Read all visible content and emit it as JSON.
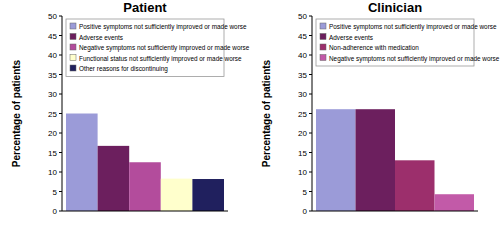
{
  "chart_data": [
    {
      "type": "bar",
      "title": "Patient",
      "y_label": "Percentage of patients",
      "categories": [
        "Positive symptoms not sufficiently improved or made worse",
        "Adverse events",
        "Negative symptoms not sufficiently improved or made worse",
        "Functional status not sufficiently improved or made worse",
        "Other reasons for discontinuing"
      ],
      "values": [
        25,
        16.7,
        12.5,
        8.3,
        8.2
      ],
      "colors": [
        "#9b9bd8",
        "#6c1f5e",
        "#b34c9c",
        "#ffffcc",
        "#20205e"
      ],
      "ylim": [
        0,
        50
      ],
      "yticks": [
        0,
        5,
        10,
        15,
        20,
        25,
        30,
        35,
        40,
        45,
        50
      ],
      "legend": "upper left",
      "tick_labels": "y"
    },
    {
      "type": "bar",
      "title": "Clinician",
      "y_label": "Percentage of patients",
      "categories": [
        "Positive symptoms not sufficiently improved or made worse",
        "Adverse events",
        "Non-adherence with medication",
        "Negative symptoms not sufficiently improved or made worse"
      ],
      "values": [
        26.1,
        26.1,
        13,
        4.3
      ],
      "colors": [
        "#9b9bd8",
        "#6c1f5e",
        "#9c2f6c",
        "#c25aa8"
      ],
      "ylim": [
        0,
        50
      ],
      "yticks": [
        0,
        5,
        10,
        15,
        20,
        25,
        30,
        35,
        40,
        45,
        50
      ],
      "legend": "upper left",
      "tick_labels": "y"
    }
  ]
}
